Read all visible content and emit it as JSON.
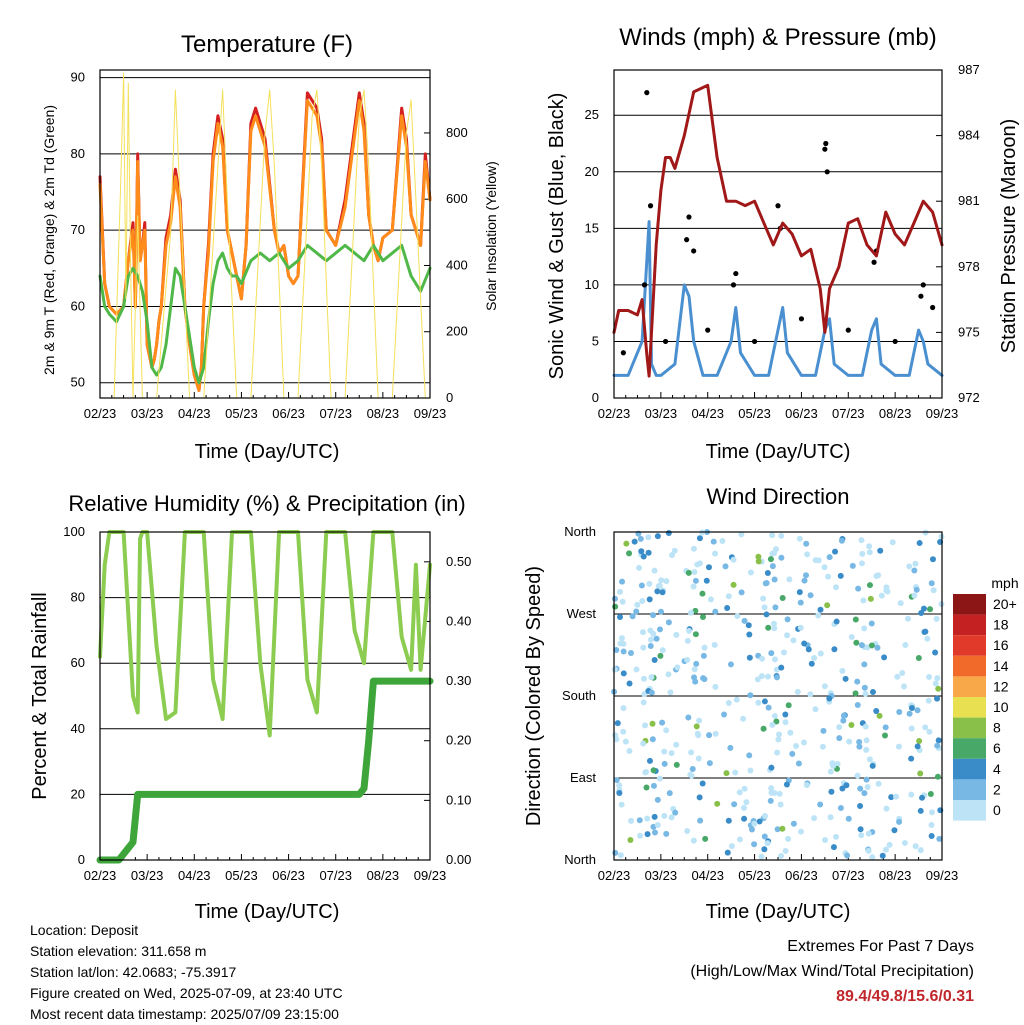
{
  "panels": {
    "temperature": {
      "title": "Temperature (F)",
      "xlabel": "Time (Day/UTC)",
      "ylabel": "2m & 9m T (Red, Orange) & 2m Td (Green)",
      "ylabel_right": "Solar Insolation (Yellow)"
    },
    "winds": {
      "title": "Winds (mph) & Pressure (mb)",
      "xlabel": "Time (Day/UTC)",
      "ylabel": "Sonic Wind & Gust (Blue, Black)",
      "ylabel_right": "Station Pressure (Maroon)"
    },
    "humidity": {
      "title": "Relative Humidity (%) & Precipitation (in)",
      "xlabel": "Time (Day/UTC)",
      "ylabel": "Percent & Total Rainfall"
    },
    "direction": {
      "title": "Wind Direction",
      "xlabel": "Time (Day/UTC)",
      "ylabel": "Direction (Colored By Speed)",
      "legend_title": "mph"
    }
  },
  "footer": {
    "location": "Location: Deposit",
    "elevation": "Station elevation: 311.658 m",
    "latlon": "Station lat/lon: 42.0683; -75.3917",
    "created": "Figure created on Wed, 2025-07-09, at 23:40 UTC",
    "recent": "Most recent data timestamp: 2025/07/09 23:15:00",
    "extremes_title": "Extremes For Past 7 Days",
    "extremes_subtitle": "(High/Low/Max Wind/Total Precipitation)",
    "extremes_values": "89.4/49.8/15.6/0.31"
  },
  "chart_data": [
    {
      "id": "temperature",
      "type": "line",
      "title": "Temperature (F)",
      "xlabel": "Time (Day/UTC)",
      "ylabel": "2m & 9m T (Red, Orange) & 2m Td (Green)",
      "ylabel_right": "Solar Insolation (Yellow)",
      "x_ticks": [
        "02/23",
        "03/23",
        "04/23",
        "05/23",
        "06/23",
        "07/23",
        "08/23",
        "09/23"
      ],
      "xlim": [
        0,
        7
      ],
      "ylim": [
        48,
        91
      ],
      "y_ticks": [
        50,
        60,
        70,
        80,
        90
      ],
      "y2lim": [
        0,
        990
      ],
      "y2_ticks": [
        0,
        200,
        400,
        600,
        800
      ],
      "grid": true,
      "series": [
        {
          "color": "#d42020",
          "axis": "left",
          "x": [
            0,
            0.1,
            0.2,
            0.35,
            0.5,
            0.6,
            0.7,
            0.75,
            0.8,
            0.85,
            0.9,
            0.95,
            1.0,
            1.1,
            1.15,
            1.2,
            1.25,
            1.3,
            1.4,
            1.5,
            1.6,
            1.7,
            1.8,
            1.9,
            2.0,
            2.1,
            2.15,
            2.2,
            2.3,
            2.4,
            2.5,
            2.6,
            2.7,
            2.8,
            2.9,
            3.0,
            3.1,
            3.2,
            3.3,
            3.5,
            3.7,
            3.8,
            3.9,
            4.0,
            4.1,
            4.2,
            4.4,
            4.6,
            4.7,
            4.8,
            4.9,
            5.0,
            5.2,
            5.5,
            5.6,
            5.7,
            5.8,
            5.9,
            6.0,
            6.2,
            6.4,
            6.5,
            6.6,
            6.7,
            6.8,
            6.9,
            7.0
          ],
          "y": [
            77,
            63,
            60,
            59,
            60,
            66,
            71,
            60,
            80,
            66,
            68,
            71,
            55,
            52,
            53,
            55,
            58,
            60,
            69,
            72,
            78,
            74,
            60,
            55,
            51,
            49,
            52,
            60,
            68,
            80,
            85,
            82,
            70,
            67,
            64,
            61,
            68,
            84,
            86,
            82,
            70,
            67,
            68,
            64,
            63,
            64,
            88,
            86,
            82,
            70,
            69,
            68,
            74,
            88,
            84,
            72,
            68,
            66,
            69,
            70,
            86,
            82,
            72,
            70,
            68,
            80,
            74
          ]
        },
        {
          "color": "#ff8c1a",
          "axis": "left",
          "x": [
            0,
            0.1,
            0.2,
            0.35,
            0.5,
            0.6,
            0.7,
            0.75,
            0.8,
            0.85,
            0.9,
            0.95,
            1.0,
            1.1,
            1.15,
            1.2,
            1.25,
            1.3,
            1.4,
            1.5,
            1.6,
            1.7,
            1.8,
            1.9,
            2.0,
            2.1,
            2.15,
            2.2,
            2.3,
            2.4,
            2.5,
            2.6,
            2.7,
            2.8,
            2.9,
            3.0,
            3.1,
            3.2,
            3.3,
            3.5,
            3.7,
            3.8,
            3.9,
            4.0,
            4.1,
            4.2,
            4.4,
            4.6,
            4.7,
            4.8,
            4.9,
            5.0,
            5.2,
            5.5,
            5.6,
            5.7,
            5.8,
            5.9,
            6.0,
            6.2,
            6.4,
            6.5,
            6.6,
            6.7,
            6.8,
            6.9,
            7.0
          ],
          "y": [
            76,
            63,
            60,
            59,
            60,
            66,
            70,
            60,
            79,
            66,
            68,
            70,
            55,
            52,
            53,
            55,
            58,
            60,
            68,
            71,
            77,
            73,
            60,
            55,
            51,
            49,
            52,
            60,
            67,
            79,
            84,
            81,
            70,
            67,
            64,
            61,
            68,
            83,
            85,
            81,
            70,
            67,
            68,
            64,
            63,
            64,
            87,
            85,
            81,
            70,
            69,
            68,
            73,
            87,
            83,
            72,
            68,
            66,
            69,
            70,
            85,
            81,
            72,
            70,
            68,
            79,
            74
          ]
        },
        {
          "color": "#4fb848",
          "axis": "left",
          "x": [
            0,
            0.1,
            0.2,
            0.35,
            0.5,
            0.6,
            0.7,
            0.8,
            0.9,
            1.0,
            1.1,
            1.2,
            1.3,
            1.4,
            1.5,
            1.6,
            1.7,
            1.8,
            1.9,
            2.0,
            2.1,
            2.2,
            2.3,
            2.4,
            2.5,
            2.6,
            2.7,
            2.8,
            2.9,
            3.0,
            3.2,
            3.4,
            3.6,
            3.8,
            4.0,
            4.2,
            4.4,
            4.6,
            4.8,
            5.0,
            5.2,
            5.4,
            5.6,
            5.8,
            6.0,
            6.2,
            6.4,
            6.6,
            6.8,
            7.0
          ],
          "y": [
            64,
            60,
            59,
            58,
            60,
            64,
            65,
            64,
            62,
            58,
            52,
            51,
            52,
            55,
            60,
            65,
            64,
            60,
            56,
            52,
            50,
            52,
            58,
            63,
            66,
            67,
            65,
            64,
            64,
            63,
            66,
            67,
            66,
            67,
            65,
            66,
            68,
            67,
            66,
            67,
            68,
            67,
            66,
            68,
            66,
            67,
            68,
            64,
            62,
            65
          ]
        },
        {
          "color": "#f5e05a",
          "axis": "right",
          "x": [
            0.3,
            0.45,
            0.5,
            0.55,
            0.6,
            0.65,
            0.7,
            0.8,
            0.9,
            1.0,
            1.2,
            1.5,
            1.6,
            1.7,
            1.9,
            2.2,
            2.5,
            2.6,
            2.7,
            2.9,
            3.2,
            3.5,
            3.6,
            3.7,
            3.9,
            4.2,
            4.5,
            4.6,
            4.7,
            4.9,
            5.2,
            5.5,
            5.6,
            5.7,
            5.9,
            6.2,
            6.5,
            6.6,
            6.7,
            6.9
          ],
          "y": [
            0,
            700,
            980,
            300,
            950,
            400,
            0,
            550,
            0,
            0,
            0,
            500,
            930,
            600,
            0,
            0,
            700,
            930,
            600,
            0,
            0,
            800,
            930,
            700,
            0,
            0,
            850,
            930,
            700,
            0,
            0,
            850,
            930,
            700,
            0,
            0,
            800,
            900,
            600,
            0
          ]
        }
      ]
    },
    {
      "id": "winds",
      "type": "line",
      "title": "Winds (mph) & Pressure (mb)",
      "xlabel": "Time (Day/UTC)",
      "ylabel": "Sonic Wind & Gust (Blue, Black)",
      "ylabel_right": "Station Pressure (Maroon)",
      "x_ticks": [
        "02/23",
        "03/23",
        "04/23",
        "05/23",
        "06/23",
        "07/23",
        "08/23",
        "09/23"
      ],
      "xlim": [
        0,
        7
      ],
      "ylim": [
        0,
        29
      ],
      "y_ticks": [
        0,
        5,
        10,
        15,
        20,
        25
      ],
      "y2lim": [
        972,
        987
      ],
      "y2_ticks": [
        972,
        975,
        978,
        981,
        984,
        987
      ],
      "grid": true,
      "series": [
        {
          "color": "#4a90d0",
          "axis": "left",
          "x": [
            0,
            0.3,
            0.6,
            0.75,
            0.8,
            0.9,
            1.0,
            1.3,
            1.5,
            1.6,
            1.7,
            1.9,
            2.2,
            2.5,
            2.6,
            2.7,
            3.0,
            3.3,
            3.5,
            3.6,
            3.7,
            4.0,
            4.3,
            4.5,
            4.6,
            4.7,
            5.0,
            5.3,
            5.5,
            5.6,
            5.7,
            6.0,
            6.3,
            6.5,
            6.6,
            6.7,
            7.0
          ],
          "y": [
            2,
            2,
            5,
            15.6,
            3,
            2,
            2,
            3,
            10,
            9,
            5,
            2,
            2,
            5,
            8,
            4,
            2,
            2,
            6,
            8,
            4,
            2,
            2,
            6,
            7,
            3,
            2,
            2,
            6,
            7,
            3,
            2,
            2,
            6,
            5,
            3,
            2
          ]
        },
        {
          "color": "#000000",
          "axis": "left",
          "style": "markers",
          "x": [
            0.65,
            0.7,
            0.78,
            1.55,
            1.6,
            1.7,
            2.55,
            2.6,
            3.5,
            3.55,
            4.5,
            4.52,
            4.55,
            5.55,
            5.6,
            6.55,
            6.6,
            0.2,
            1.1,
            2.0,
            3.0,
            4.0,
            5.0,
            6.0,
            6.8
          ],
          "y": [
            10,
            27,
            17,
            14,
            16,
            13,
            10,
            11,
            17,
            15,
            22,
            22.5,
            20,
            12,
            13,
            9,
            10,
            4,
            5,
            6,
            5,
            7,
            6,
            5,
            8
          ]
        },
        {
          "color": "#a01818",
          "axis": "right",
          "x": [
            0,
            0.1,
            0.3,
            0.5,
            0.6,
            0.7,
            0.75,
            0.8,
            0.9,
            1.0,
            1.1,
            1.2,
            1.3,
            1.5,
            1.7,
            2.0,
            2.2,
            2.4,
            2.6,
            2.8,
            3.0,
            3.2,
            3.4,
            3.6,
            3.8,
            4.0,
            4.2,
            4.4,
            4.5,
            4.55,
            4.6,
            4.8,
            5.0,
            5.2,
            5.4,
            5.6,
            5.8,
            6.0,
            6.2,
            6.4,
            6.6,
            6.8,
            7.0
          ],
          "y": [
            975,
            976,
            976,
            975.8,
            976.5,
            974,
            973,
            975,
            979,
            981.5,
            983,
            983,
            982.5,
            984,
            986,
            986.3,
            983,
            981,
            981,
            980.8,
            981,
            980,
            979,
            980,
            979.5,
            978.5,
            978.8,
            977,
            975,
            976,
            977,
            978,
            980,
            980.2,
            979,
            978.5,
            980.5,
            979.5,
            979,
            980,
            981,
            980.5,
            979
          ]
        }
      ]
    },
    {
      "id": "humidity",
      "type": "line",
      "title": "Relative Humidity (%) & Precipitation (in)",
      "xlabel": "Time (Day/UTC)",
      "ylabel": "Percent & Total Rainfall",
      "x_ticks": [
        "02/23",
        "03/23",
        "04/23",
        "05/23",
        "06/23",
        "07/23",
        "08/23",
        "09/23"
      ],
      "xlim": [
        0,
        7
      ],
      "ylim": [
        0,
        100
      ],
      "y_ticks": [
        0,
        20,
        40,
        60,
        80,
        100
      ],
      "y2lim": [
        0,
        0.55
      ],
      "y2_ticks": [
        0.0,
        0.1,
        0.2,
        0.3,
        0.4,
        0.5
      ],
      "grid": true,
      "series": [
        {
          "color": "#8ccc50",
          "axis": "left",
          "x": [
            0,
            0.1,
            0.2,
            0.5,
            0.7,
            0.8,
            0.85,
            0.9,
            1.0,
            1.2,
            1.4,
            1.6,
            1.8,
            2.0,
            2.2,
            2.4,
            2.6,
            2.8,
            3.0,
            3.2,
            3.4,
            3.6,
            3.8,
            4.0,
            4.2,
            4.4,
            4.6,
            4.8,
            5.0,
            5.2,
            5.4,
            5.6,
            5.8,
            6.0,
            6.2,
            6.4,
            6.6,
            6.7,
            6.8,
            7.0
          ],
          "y": [
            62,
            90,
            100,
            100,
            50,
            45,
            98,
            100,
            100,
            65,
            43,
            45,
            100,
            100,
            100,
            55,
            43,
            100,
            100,
            100,
            60,
            38,
            100,
            100,
            100,
            55,
            45,
            100,
            100,
            100,
            70,
            60,
            100,
            100,
            100,
            68,
            58,
            90,
            58,
            90
          ]
        },
        {
          "color": "#3da53a",
          "axis": "right",
          "x": [
            0,
            0.4,
            0.5,
            0.6,
            0.7,
            0.8,
            0.9,
            1.0,
            1.5,
            2.0,
            3.0,
            4.0,
            5.0,
            5.5,
            5.6,
            5.7,
            5.8,
            6.0,
            6.5,
            7.0
          ],
          "y": [
            0,
            0,
            0.01,
            0.02,
            0.03,
            0.11,
            0.11,
            0.11,
            0.11,
            0.11,
            0.11,
            0.11,
            0.11,
            0.11,
            0.12,
            0.2,
            0.3,
            0.3,
            0.3,
            0.3
          ]
        }
      ]
    },
    {
      "id": "direction",
      "type": "scatter",
      "title": "Wind Direction",
      "xlabel": "Time (Day/UTC)",
      "ylabel": "Direction (Colored By Speed)",
      "x_ticks": [
        "02/23",
        "03/23",
        "04/23",
        "05/23",
        "06/23",
        "07/23",
        "08/23",
        "09/23"
      ],
      "xlim": [
        0,
        7
      ],
      "y_ticks": [
        "North",
        "West",
        "South",
        "East",
        "North"
      ],
      "ylim": [
        0,
        360
      ],
      "grid": true,
      "legend": {
        "title": "mph",
        "labels": [
          "20+",
          "18",
          "16",
          "14",
          "12",
          "10",
          "8",
          "6",
          "4",
          "2",
          "0"
        ],
        "colors": [
          "#8c1616",
          "#c42222",
          "#e23a2a",
          "#f26a2a",
          "#f8a848",
          "#e8e050",
          "#88c04a",
          "#48a868",
          "#3a8cc8",
          "#78b8e4",
          "#bde4f6"
        ],
        "placement": "right"
      }
    }
  ]
}
